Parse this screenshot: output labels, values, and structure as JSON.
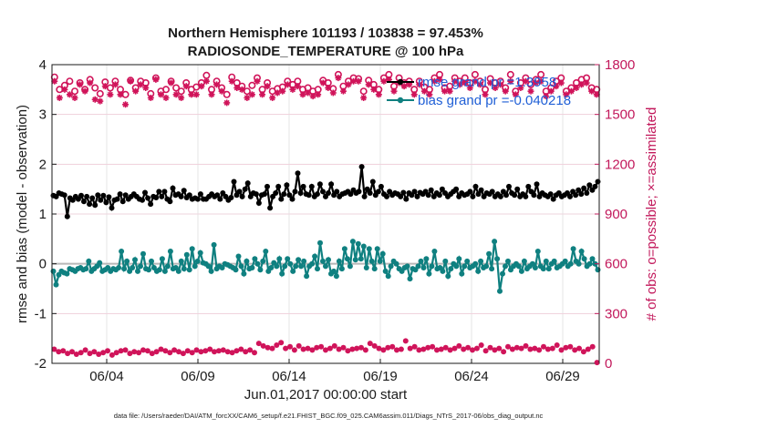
{
  "chart_data": {
    "type": "line",
    "title": "Northern Hemisphere 101193 / 103838 = 97.453%",
    "subtitle": "RADIOSONDE_TEMPERATURE @ 100 hPa",
    "xlabel": "Jun.01,2017 00:00:00 start",
    "ylabel": "rmse and bias (model - observation)",
    "ylabel_right": "# of obs: o=possible; ×=assimilated",
    "footer": "data file: /Users/raeder/DAI/ATM_forcXX/CAM6_setup/f.e21.FHIST_BGC.f09_025.CAM6assim.011/Diags_NTrS_2017-06/obs_diag_output.nc",
    "x_start": "2017-06-01",
    "x_end": "2017-06-30",
    "xlim_days": [
      0,
      30
    ],
    "x_ticks": [
      {
        "day": 3,
        "label": "06/04"
      },
      {
        "day": 8,
        "label": "06/09"
      },
      {
        "day": 13,
        "label": "06/14"
      },
      {
        "day": 18,
        "label": "06/19"
      },
      {
        "day": 23,
        "label": "06/24"
      },
      {
        "day": 28,
        "label": "06/29"
      }
    ],
    "ylim": [
      -2,
      4
    ],
    "y_ticks": [
      -2,
      -1,
      0,
      1,
      2,
      3,
      4
    ],
    "ylim_right": [
      0,
      1800
    ],
    "y_ticks_right": [
      0,
      300,
      600,
      900,
      1200,
      1500,
      1800
    ],
    "grid": true,
    "legend_position": "top-right",
    "legend": [
      {
        "label": "rmse grand pr =1.3958"
      },
      {
        "label": "bias grand pr =-0.040218"
      }
    ],
    "colors": {
      "rmse": "#000000",
      "bias": "#0f8080",
      "obs": "#d0145a",
      "zero_line": "#b8b8b8",
      "legend_text": "#1f5fd6"
    },
    "series": [
      {
        "name": "rmse grand pr =1.3958",
        "axis": "left",
        "color": "#000000",
        "marker": "circle",
        "values": [
          1.37,
          1.35,
          1.42,
          1.4,
          1.38,
          0.95,
          1.32,
          1.28,
          1.35,
          1.3,
          1.37,
          1.25,
          1.35,
          1.2,
          1.32,
          1.18,
          1.38,
          1.28,
          1.37,
          1.23,
          1.34,
          1.12,
          1.28,
          1.3,
          1.4,
          1.25,
          1.38,
          1.3,
          1.35,
          1.4,
          1.35,
          1.3,
          1.28,
          1.43,
          1.32,
          1.2,
          1.35,
          1.33,
          1.45,
          1.35,
          1.45,
          1.3,
          1.25,
          1.52,
          1.38,
          1.4,
          1.35,
          1.47,
          1.33,
          1.38,
          1.3,
          1.32,
          1.3,
          1.4,
          1.3,
          1.3,
          1.35,
          1.4,
          1.35,
          1.38,
          1.3,
          1.42,
          1.35,
          1.28,
          1.33,
          1.65,
          1.38,
          1.45,
          1.35,
          1.5,
          1.62,
          1.35,
          1.42,
          1.4,
          1.22,
          1.38,
          1.4,
          1.55,
          1.12,
          1.35,
          1.42,
          1.55,
          1.3,
          1.4,
          1.58,
          1.38,
          1.3,
          1.45,
          1.82,
          1.42,
          1.55,
          1.4,
          1.38,
          1.55,
          1.35,
          1.4,
          1.6,
          1.45,
          1.35,
          1.42,
          1.6,
          1.38,
          1.45,
          1.35,
          1.4,
          1.42,
          1.45,
          1.4,
          1.48,
          1.42,
          1.45,
          1.95,
          1.35,
          1.5,
          1.42,
          1.65,
          1.38,
          1.45,
          1.55,
          1.4,
          1.35,
          1.45,
          1.38,
          1.42,
          1.4,
          1.35,
          1.43,
          1.3,
          1.42,
          1.38,
          1.45,
          1.35,
          1.43,
          1.4,
          1.45,
          1.38,
          1.48,
          1.35,
          1.42,
          1.38,
          1.5,
          1.42,
          1.35,
          1.4,
          1.45,
          1.5,
          1.35,
          1.42,
          1.38,
          1.4,
          1.45,
          1.35,
          1.55,
          1.4,
          1.48,
          1.35,
          1.42,
          1.4,
          1.45,
          1.35,
          1.4,
          1.35,
          1.45,
          1.38,
          1.55,
          1.42,
          1.38,
          1.5,
          1.35,
          1.4,
          1.35,
          1.55,
          1.45,
          1.38,
          1.6,
          1.35,
          1.42,
          1.38,
          1.35,
          1.4,
          1.3,
          1.38,
          1.42,
          1.35,
          1.38,
          1.42,
          1.35,
          1.45,
          1.38,
          1.48,
          1.4,
          1.52,
          1.42,
          1.58,
          1.48,
          1.55,
          1.65
        ]
      },
      {
        "name": "bias grand pr =-0.040218",
        "axis": "left",
        "color": "#0f8080",
        "marker": "circle",
        "values": [
          -0.15,
          -0.42,
          -0.22,
          -0.15,
          -0.18,
          -0.2,
          -0.1,
          -0.12,
          -0.15,
          -0.1,
          -0.08,
          -0.12,
          -0.1,
          0.05,
          -0.15,
          -0.1,
          -0.05,
          0.02,
          -0.15,
          -0.12,
          -0.08,
          -0.15,
          -0.1,
          -0.12,
          -0.08,
          0.25,
          -0.1,
          0.05,
          -0.15,
          -0.08,
          0.08,
          -0.15,
          -0.05,
          0.2,
          -0.1,
          -0.12,
          0.05,
          -0.08,
          -0.15,
          -0.12,
          0.1,
          -0.15,
          -0.05,
          0.25,
          -0.1,
          -0.08,
          -0.15,
          0.05,
          -0.1,
          0.18,
          -0.12,
          0.3,
          -0.05,
          0.05,
          0.22,
          0.02,
          0.0,
          -0.05,
          -0.15,
          0.38,
          -0.1,
          -0.05,
          -0.08,
          0.0,
          -0.02,
          -0.05,
          -0.08,
          -0.12,
          0.15,
          -0.05,
          -0.2,
          0.05,
          -0.1,
          -0.08,
          0.1,
          0.0,
          -0.12,
          0.05,
          0.25,
          -0.15,
          -0.08,
          0.02,
          -0.05,
          0.1,
          -0.2,
          -0.05,
          0.1,
          0.0,
          -0.15,
          -0.05,
          0.08,
          -0.05,
          0.05,
          -0.25,
          -0.05,
          0.0,
          0.15,
          -0.1,
          0.42,
          0.05,
          -0.05,
          0.08,
          -0.2,
          -0.15,
          -0.25,
          0.05,
          -0.1,
          0.3,
          0.1,
          -0.05,
          0.45,
          0.08,
          0.4,
          0.1,
          0.35,
          -0.08,
          0.3,
          0.05,
          -0.1,
          0.3,
          0.05,
          0.2,
          -0.15,
          -0.25,
          -0.05,
          0.05,
          0.0,
          -0.1,
          -0.15,
          -0.08,
          -0.05,
          -0.3,
          -0.1,
          -0.12,
          -0.05,
          0.05,
          -0.08,
          0.1,
          -0.2,
          -0.05,
          0.25,
          -0.1,
          -0.08,
          -0.15,
          0.05,
          -0.25,
          -0.1,
          0.0,
          -0.05,
          0.1,
          -0.2,
          -0.05,
          0.05,
          -0.08,
          -0.05,
          0.0,
          -0.15,
          0.05,
          -0.08,
          -0.05,
          0.2,
          -0.1,
          0.45,
          0.1,
          -0.55,
          -0.2,
          -0.05,
          0.05,
          -0.12,
          -0.05,
          0.0,
          -0.05,
          -0.15,
          0.05,
          -0.1,
          -0.05,
          0.0,
          -0.08,
          0.25,
          -0.05,
          -0.1,
          0.05,
          -0.1,
          0.0,
          0.05,
          -0.08,
          -0.05,
          0.0,
          0.05,
          -0.05,
          0.0,
          0.3,
          0.05,
          0.0,
          0.25,
          0.1,
          -0.05,
          0.0,
          0.1,
          0.0,
          -0.12
        ]
      },
      {
        "name": "# of obs possible",
        "axis": "right",
        "color": "#d0145a",
        "marker": "o",
        "values": [
          1725,
          1650,
          1675,
          1700,
          1640,
          1690,
          1650,
          1710,
          1660,
          1625,
          1695,
          1660,
          1700,
          1650,
          1620,
          1705,
          1660,
          1700,
          1690,
          1625,
          1720,
          1640,
          1650,
          1700,
          1660,
          1640,
          1690,
          1650,
          1665,
          1690,
          1735,
          1650,
          1700,
          1660,
          1620,
          1725,
          1690,
          1670,
          1640,
          1675,
          1720,
          1650,
          1690,
          1640,
          1655,
          1665,
          1700,
          1680,
          1700,
          1650,
          1660,
          1640,
          1650,
          1705,
          1690,
          1655,
          1740,
          1670,
          1700,
          1720,
          1715,
          1640,
          1705,
          1680,
          1650,
          1720,
          1740,
          1670,
          1720,
          1690,
          1700,
          1650,
          1700,
          1665,
          1650,
          1720,
          1740,
          1660,
          1670,
          1720,
          1700,
          1720,
          1690,
          1740,
          1700,
          1650,
          1715,
          1690,
          1700,
          1660,
          1740,
          1640,
          1690,
          1720,
          1680,
          1710,
          1740,
          1640,
          1660,
          1700,
          1720,
          1640,
          1660,
          1690,
          1710,
          1720,
          1660,
          1650
        ]
      },
      {
        "name": "# of obs assimilated",
        "axis": "right",
        "color": "#d0145a",
        "marker": "x",
        "values": [
          1700,
          1600,
          1650,
          1620,
          1600,
          1680,
          1640,
          1690,
          1590,
          1580,
          1670,
          1620,
          1680,
          1620,
          1560,
          1700,
          1640,
          1680,
          1660,
          1600,
          1710,
          1620,
          1600,
          1690,
          1620,
          1600,
          1670,
          1620,
          1620,
          1670,
          1700,
          1620,
          1680,
          1640,
          1570,
          1700,
          1660,
          1650,
          1600,
          1620,
          1700,
          1620,
          1670,
          1600,
          1630,
          1640,
          1680,
          1650,
          1670,
          1620,
          1630,
          1610,
          1620,
          1690,
          1660,
          1630,
          1720,
          1640,
          1680,
          1700,
          1700,
          1600,
          1680,
          1650,
          1620,
          1700,
          1710,
          1640,
          1690,
          1670,
          1680,
          1620,
          1680,
          1640,
          1620,
          1700,
          1710,
          1640,
          1640,
          1700,
          1680,
          1690,
          1660,
          1700,
          1680,
          1620,
          1690,
          1660,
          1680,
          1640,
          1700,
          1620,
          1660,
          1700,
          1640,
          1690,
          1700,
          1610,
          1640,
          1670,
          1690,
          1620,
          1640,
          1660,
          1680,
          1690,
          1640,
          1620
        ]
      }
    ],
    "obs_bottom_values": [
      85,
      70,
      75,
      60,
      70,
      55,
      65,
      80,
      60,
      70,
      55,
      65,
      75,
      50,
      65,
      75,
      80,
      60,
      70,
      65,
      80,
      75,
      60,
      70,
      85,
      75,
      65,
      80,
      70,
      60,
      75,
      65,
      80,
      70,
      75,
      85,
      70,
      75,
      80,
      70,
      65,
      75,
      85,
      70,
      80,
      65,
      120,
      105,
      95,
      90,
      110,
      125,
      90,
      100,
      80,
      105,
      85,
      90,
      80,
      95,
      100,
      80,
      90,
      105,
      85,
      95,
      75,
      85,
      90,
      95,
      80,
      120,
      105,
      90,
      80,
      95,
      100,
      80,
      85,
      135,
      90,
      100,
      80,
      85,
      95,
      100,
      80,
      85,
      95,
      80,
      90,
      105,
      85,
      95,
      80,
      90,
      110,
      75,
      95,
      80,
      90,
      70,
      100,
      85,
      95,
      90,
      105,
      85,
      90,
      80,
      100,
      85,
      90,
      110,
      80,
      95,
      100,
      80,
      90,
      70,
      85,
      100,
      5
    ]
  }
}
